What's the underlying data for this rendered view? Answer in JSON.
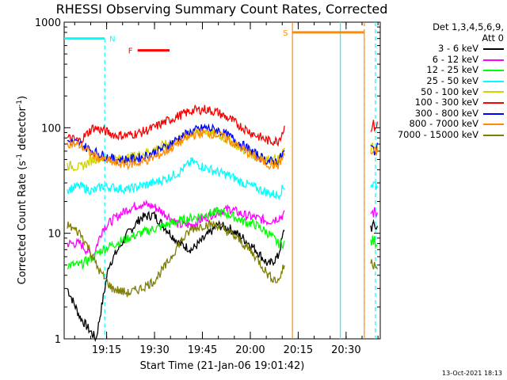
{
  "chart_data": {
    "type": "line",
    "title": "RHESSI Observing Summary Count Rates, Corrected",
    "xlabel": "Start Time (21-Jan-06 19:01:42)",
    "ylabel_text": "Corrected Count Rate (s",
    "ylabel_sup1": "-1",
    "ylabel_mid": " detector",
    "ylabel_sup2": "-1",
    "ylabel_end": ")",
    "xlim_min": [
      0,
      39
    ],
    "yscale": "log",
    "ylim": [
      1,
      1000
    ],
    "y_ticks": [
      "1",
      "10",
      "100",
      "1000"
    ],
    "x_ticks": [
      {
        "min": 13.3,
        "label": "19:15"
      },
      {
        "min": 28.3,
        "label": "19:30"
      },
      {
        "min": 43.3,
        "label": "19:45"
      },
      {
        "min": 58.3,
        "label": "20:00"
      },
      {
        "min": 73.3,
        "label": "20:15"
      },
      {
        "min": 88.3,
        "label": "20:30"
      }
    ],
    "x_max_min": 99,
    "legend_header": [
      "Det 1,3,4,5,6,9,",
      "Att 0"
    ],
    "series": [
      {
        "name": "3 - 6 keV",
        "color": "#000000",
        "points": [
          [
            1,
            3
          ],
          [
            5,
            1.6
          ],
          [
            8,
            1.2
          ],
          [
            10,
            1
          ],
          [
            14,
            5
          ],
          [
            18,
            8
          ],
          [
            20,
            10
          ],
          [
            24,
            14
          ],
          [
            28,
            15
          ],
          [
            32,
            11
          ],
          [
            36,
            8
          ],
          [
            40,
            7
          ],
          [
            44,
            9
          ],
          [
            48,
            12
          ],
          [
            52,
            11
          ],
          [
            56,
            9
          ],
          [
            60,
            7
          ],
          [
            64,
            5
          ],
          [
            67,
            6
          ],
          [
            69,
            11
          ]
        ]
      },
      {
        "name": "6 - 12 keV",
        "color": "#ff00ff",
        "points": [
          [
            1,
            8
          ],
          [
            5,
            8
          ],
          [
            9,
            6
          ],
          [
            12,
            11
          ],
          [
            16,
            14
          ],
          [
            20,
            17
          ],
          [
            24,
            19
          ],
          [
            28,
            18
          ],
          [
            32,
            15
          ],
          [
            36,
            12
          ],
          [
            40,
            12
          ],
          [
            44,
            14
          ],
          [
            48,
            16
          ],
          [
            52,
            17
          ],
          [
            56,
            15
          ],
          [
            60,
            14
          ],
          [
            64,
            13
          ],
          [
            67,
            14
          ],
          [
            69,
            15
          ]
        ]
      },
      {
        "name": "12 - 25 keV",
        "color": "#00ff00",
        "points": [
          [
            1,
            5
          ],
          [
            5,
            5
          ],
          [
            9,
            6
          ],
          [
            12,
            7
          ],
          [
            16,
            8
          ],
          [
            20,
            9
          ],
          [
            24,
            10
          ],
          [
            28,
            11
          ],
          [
            32,
            12
          ],
          [
            36,
            13
          ],
          [
            40,
            14
          ],
          [
            44,
            15
          ],
          [
            48,
            16
          ],
          [
            52,
            15
          ],
          [
            56,
            13
          ],
          [
            60,
            12
          ],
          [
            64,
            10
          ],
          [
            67,
            8
          ],
          [
            69,
            8
          ]
        ]
      },
      {
        "name": "25 - 50 keV",
        "color": "#00ffff",
        "points": [
          [
            1,
            26
          ],
          [
            5,
            28
          ],
          [
            9,
            25
          ],
          [
            12,
            28
          ],
          [
            16,
            27
          ],
          [
            20,
            26
          ],
          [
            24,
            28
          ],
          [
            28,
            30
          ],
          [
            32,
            33
          ],
          [
            36,
            38
          ],
          [
            40,
            48
          ],
          [
            44,
            42
          ],
          [
            48,
            38
          ],
          [
            52,
            35
          ],
          [
            56,
            30
          ],
          [
            60,
            27
          ],
          [
            64,
            24
          ],
          [
            67,
            23
          ],
          [
            69,
            28
          ]
        ]
      },
      {
        "name": "50 - 100 keV",
        "color": "#d2d200",
        "points": [
          [
            1,
            44
          ],
          [
            5,
            42
          ],
          [
            9,
            50
          ],
          [
            12,
            52
          ],
          [
            16,
            50
          ],
          [
            20,
            52
          ],
          [
            24,
            56
          ],
          [
            28,
            62
          ],
          [
            32,
            70
          ],
          [
            36,
            78
          ],
          [
            40,
            88
          ],
          [
            44,
            92
          ],
          [
            48,
            85
          ],
          [
            52,
            75
          ],
          [
            56,
            62
          ],
          [
            60,
            54
          ],
          [
            64,
            50
          ],
          [
            67,
            50
          ],
          [
            69,
            60
          ]
        ]
      },
      {
        "name": "100 - 300 keV",
        "color": "#ff0000",
        "points": [
          [
            1,
            80
          ],
          [
            5,
            75
          ],
          [
            9,
            100
          ],
          [
            12,
            95
          ],
          [
            16,
            85
          ],
          [
            20,
            85
          ],
          [
            24,
            90
          ],
          [
            28,
            100
          ],
          [
            32,
            115
          ],
          [
            36,
            130
          ],
          [
            40,
            145
          ],
          [
            44,
            150
          ],
          [
            48,
            140
          ],
          [
            52,
            120
          ],
          [
            56,
            100
          ],
          [
            60,
            85
          ],
          [
            64,
            75
          ],
          [
            67,
            75
          ],
          [
            69,
            100
          ]
        ]
      },
      {
        "name": "300 - 800 keV",
        "color": "#0000ff",
        "points": [
          [
            1,
            75
          ],
          [
            5,
            70
          ],
          [
            9,
            60
          ],
          [
            12,
            55
          ],
          [
            16,
            50
          ],
          [
            20,
            50
          ],
          [
            24,
            52
          ],
          [
            28,
            58
          ],
          [
            32,
            66
          ],
          [
            36,
            80
          ],
          [
            40,
            92
          ],
          [
            44,
            100
          ],
          [
            48,
            95
          ],
          [
            52,
            82
          ],
          [
            56,
            68
          ],
          [
            60,
            56
          ],
          [
            64,
            48
          ],
          [
            67,
            48
          ],
          [
            69,
            60
          ]
        ]
      },
      {
        "name": "800 - 7000 keV",
        "color": "#ff8c00",
        "points": [
          [
            1,
            72
          ],
          [
            5,
            68
          ],
          [
            9,
            55
          ],
          [
            12,
            50
          ],
          [
            16,
            46
          ],
          [
            20,
            45
          ],
          [
            24,
            47
          ],
          [
            28,
            52
          ],
          [
            32,
            60
          ],
          [
            36,
            72
          ],
          [
            40,
            85
          ],
          [
            44,
            90
          ],
          [
            48,
            86
          ],
          [
            52,
            75
          ],
          [
            56,
            62
          ],
          [
            60,
            52
          ],
          [
            64,
            45
          ],
          [
            67,
            44
          ],
          [
            69,
            55
          ]
        ]
      },
      {
        "name": "7000 - 15000 keV",
        "color": "#808000",
        "points": [
          [
            1,
            12
          ],
          [
            5,
            10
          ],
          [
            8,
            7
          ],
          [
            10,
            5
          ],
          [
            12,
            4
          ],
          [
            15,
            3
          ],
          [
            20,
            2.7
          ],
          [
            24,
            3
          ],
          [
            28,
            3.5
          ],
          [
            32,
            5
          ],
          [
            36,
            8
          ],
          [
            40,
            11
          ],
          [
            44,
            12
          ],
          [
            48,
            12
          ],
          [
            52,
            10
          ],
          [
            56,
            8
          ],
          [
            60,
            6
          ],
          [
            64,
            4
          ],
          [
            67,
            3.5
          ],
          [
            69,
            5
          ]
        ]
      }
    ],
    "markers": [
      {
        "label": "N",
        "color": "#00ffff",
        "x_start": 0,
        "x_end": 12.7,
        "level": 700,
        "dashed_end_min": 12.7
      },
      {
        "label": "S",
        "color": "#ff8c00",
        "x_start": 71.5,
        "x_end": 94,
        "level": 800,
        "dashed_end_min": 94
      },
      {
        "label": "F",
        "color": "#ff0000",
        "x_start": 23,
        "x_end": 33,
        "level": 540
      }
    ],
    "vlines": [
      {
        "min": 71.5,
        "color": "#ff8c00",
        "style": "solid"
      },
      {
        "min": 86.5,
        "color": "#00ffff",
        "style": "solid"
      },
      {
        "min": 94,
        "color": "#ff8c00",
        "style": "dashed"
      },
      {
        "min": 97.5,
        "color": "#00ffff",
        "style": "dashed"
      }
    ],
    "post_gap": {
      "start_min": 96,
      "end_min": 98.2
    }
  },
  "stamp": "13-Oct-2021 18:13"
}
